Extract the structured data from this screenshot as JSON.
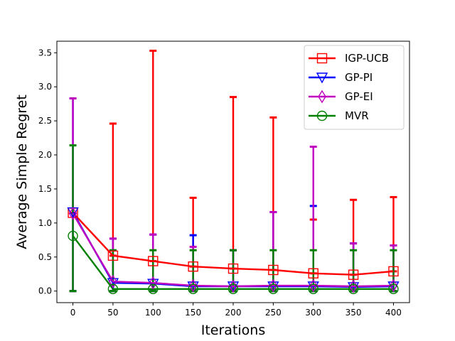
{
  "chart_data": {
    "type": "line",
    "xlabel": "Iterations",
    "ylabel": "Average Simple Regret",
    "x": [
      0,
      50,
      100,
      150,
      200,
      250,
      300,
      350,
      400
    ],
    "xticks": [
      0,
      50,
      100,
      150,
      200,
      250,
      300,
      350,
      400
    ],
    "xtick_labels": [
      "0",
      "50",
      "100",
      "150",
      "200",
      "250",
      "300",
      "350",
      "400"
    ],
    "yticks": [
      0.0,
      0.5,
      1.0,
      1.5,
      2.0,
      2.5,
      3.0,
      3.5
    ],
    "ytick_labels": [
      "0.0",
      "0.5",
      "1.0",
      "1.5",
      "2.0",
      "2.5",
      "3.0",
      "3.5"
    ],
    "xlim": [
      -20,
      420
    ],
    "ylim": [
      -0.17,
      3.67
    ],
    "grid": false,
    "legend_position": "top-right",
    "series": [
      {
        "name": "IGP-UCB",
        "color": "#ff0000",
        "marker": "square",
        "values": [
          1.15,
          0.52,
          0.44,
          0.36,
          0.33,
          0.31,
          0.26,
          0.24,
          0.29
        ],
        "upper": [
          1.15,
          2.46,
          3.53,
          1.37,
          2.85,
          2.55,
          1.05,
          1.34,
          1.38
        ],
        "lower": [
          1.15,
          0.52,
          0.44,
          0.36,
          0.33,
          0.31,
          0.26,
          0.24,
          0.29
        ]
      },
      {
        "name": "GP-PI",
        "color": "#0000ff",
        "marker": "triangle-down",
        "values": [
          1.16,
          0.12,
          0.11,
          0.07,
          0.07,
          0.07,
          0.07,
          0.06,
          0.07
        ],
        "upper": [
          2.83,
          0.77,
          0.83,
          0.82,
          0.6,
          1.16,
          1.25,
          0.7,
          0.67
        ],
        "lower": [
          0.0,
          0.0,
          0.0,
          0.0,
          0.0,
          0.0,
          0.0,
          0.0,
          0.0
        ]
      },
      {
        "name": "GP-EI",
        "color": "#bf00bf",
        "marker": "thin-diamond",
        "values": [
          1.14,
          0.14,
          0.12,
          0.08,
          0.07,
          0.08,
          0.08,
          0.07,
          0.08
        ],
        "upper": [
          2.83,
          0.77,
          0.83,
          0.65,
          0.6,
          1.16,
          2.12,
          0.7,
          0.67
        ],
        "lower": [
          0.0,
          0.0,
          0.0,
          0.0,
          0.0,
          0.0,
          0.0,
          0.0,
          0.0
        ]
      },
      {
        "name": "MVR",
        "color": "#008000",
        "marker": "circle",
        "values": [
          0.81,
          0.03,
          0.03,
          0.03,
          0.03,
          0.03,
          0.03,
          0.03,
          0.03
        ],
        "upper": [
          2.14,
          0.6,
          0.6,
          0.6,
          0.6,
          0.6,
          0.6,
          0.6,
          0.6
        ],
        "lower": [
          0.0,
          0.0,
          0.0,
          0.0,
          0.0,
          0.0,
          0.0,
          0.0,
          0.0
        ]
      }
    ]
  }
}
